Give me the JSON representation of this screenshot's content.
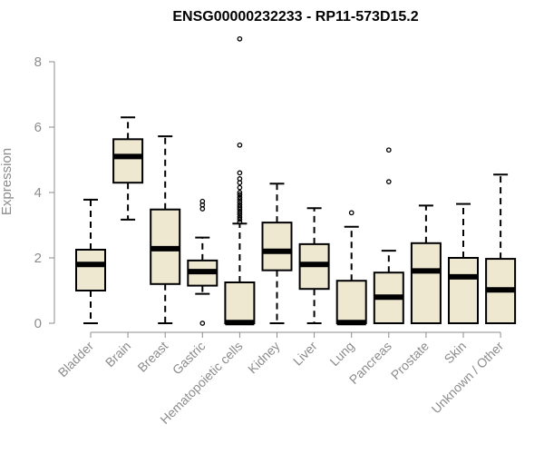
{
  "chart_data": {
    "type": "boxplot",
    "title": "ENSG00000232233 - RP11-573D15.2",
    "ylabel": "Expression",
    "ylim": [
      0,
      8
    ],
    "yticks": [
      0,
      2,
      4,
      6,
      8
    ],
    "colors": {
      "box_fill": "#efe8d0",
      "stroke": "#000000",
      "axis": "#8c8c8c"
    },
    "categories": [
      "Bladder",
      "Brain",
      "Breast",
      "Gastric",
      "Hematopoietic cells",
      "Kidney",
      "Liver",
      "Lung",
      "Pancreas",
      "Prostate",
      "Skin",
      "Unknown / Other"
    ],
    "boxes": [
      {
        "min": 0.0,
        "q1": 1.0,
        "median": 1.8,
        "q3": 2.25,
        "max": 3.78,
        "outliers": []
      },
      {
        "min": 3.17,
        "q1": 4.3,
        "median": 5.1,
        "q3": 5.63,
        "max": 6.3,
        "outliers": []
      },
      {
        "min": 0.0,
        "q1": 1.2,
        "median": 2.28,
        "q3": 3.48,
        "max": 5.72,
        "outliers": []
      },
      {
        "min": 0.9,
        "q1": 1.15,
        "median": 1.58,
        "q3": 1.92,
        "max": 2.62,
        "outliers": [
          0.0,
          3.5,
          3.62,
          3.73
        ]
      },
      {
        "min": 0.0,
        "q1": 0.0,
        "median": 0.02,
        "q3": 1.25,
        "max": 3.05,
        "outliers": [
          3.1,
          3.18,
          3.25,
          3.33,
          3.4,
          3.48,
          3.55,
          3.62,
          3.7,
          3.78,
          3.85,
          3.93,
          4.0,
          4.15,
          4.3,
          4.42,
          4.6,
          5.45,
          8.7
        ]
      },
      {
        "min": 0.0,
        "q1": 1.62,
        "median": 2.2,
        "q3": 3.08,
        "max": 4.27,
        "outliers": []
      },
      {
        "min": 0.0,
        "q1": 1.05,
        "median": 1.8,
        "q3": 2.42,
        "max": 3.52,
        "outliers": []
      },
      {
        "min": 0.0,
        "q1": 0.0,
        "median": 0.02,
        "q3": 1.3,
        "max": 2.95,
        "outliers": [
          3.38
        ]
      },
      {
        "min": 0.0,
        "q1": 0.0,
        "median": 0.8,
        "q3": 1.55,
        "max": 2.22,
        "outliers": [
          4.33,
          5.3
        ]
      },
      {
        "min": 0.0,
        "q1": 0.0,
        "median": 1.6,
        "q3": 2.45,
        "max": 3.6,
        "outliers": []
      },
      {
        "min": 0.0,
        "q1": 0.0,
        "median": 1.42,
        "q3": 2.0,
        "max": 3.65,
        "outliers": []
      },
      {
        "min": 0.0,
        "q1": 0.0,
        "median": 1.02,
        "q3": 1.97,
        "max": 4.55,
        "outliers": []
      }
    ],
    "grid": false,
    "legend": "none"
  }
}
